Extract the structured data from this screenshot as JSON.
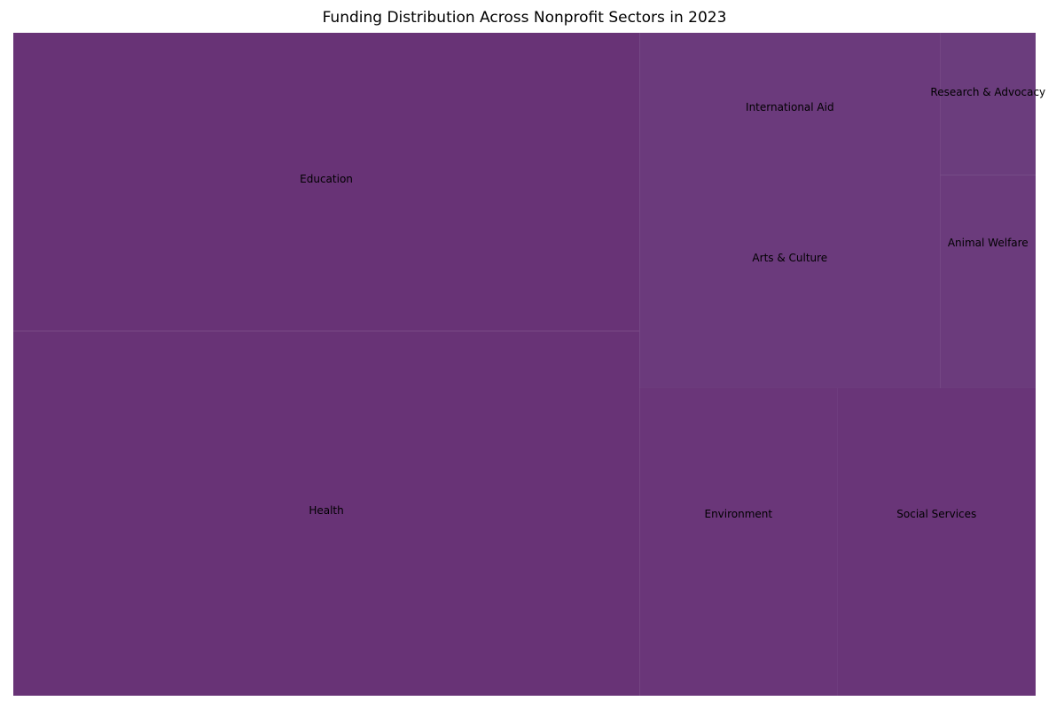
{
  "chart_data": {
    "type": "treemap",
    "title": "Funding Distribution Across Nonprofit Sectors in 2023",
    "color": "#6a3478",
    "tiles": [
      {
        "label": "Education",
        "value": 27.6
      },
      {
        "label": "Health",
        "value": 33.7
      },
      {
        "label": "International Aid",
        "value": 7.9
      },
      {
        "label": "Arts & Culture",
        "value": 7.9
      },
      {
        "label": "Research & Advocacy",
        "value": 2.0
      },
      {
        "label": "Animal Welfare",
        "value": 3.0
      },
      {
        "label": "Environment",
        "value": 9.0
      },
      {
        "label": "Social Services",
        "value": 9.0
      }
    ]
  }
}
